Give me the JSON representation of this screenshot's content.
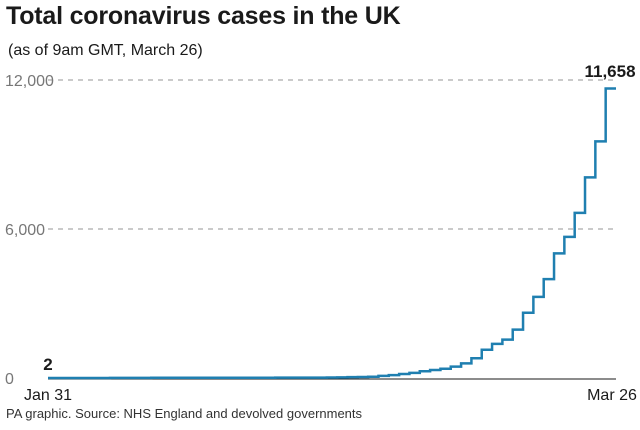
{
  "header": {
    "title": "Total coronavirus cases in the UK",
    "subtitle": "(as of 9am GMT, March 26)"
  },
  "footer": {
    "source": "PA graphic. Source: NHS England and devolved governments"
  },
  "colors": {
    "line": "#1f7fb0",
    "grid": "#aaaaaa",
    "axis": "#1a1a1a",
    "tick_label": "#777777"
  },
  "chart_data": {
    "type": "line",
    "title": "Total coronavirus cases in the UK",
    "subtitle": "(as of 9am GMT, March 26)",
    "xlabel": "",
    "ylabel": "",
    "ylim": [
      0,
      12000
    ],
    "yticks": [
      0,
      6000,
      12000
    ],
    "ytick_labels": [
      "0",
      "6,000",
      "12,000"
    ],
    "xtick_labels": [
      "Jan 31",
      "Mar 26"
    ],
    "grid": true,
    "step": true,
    "x": [
      "Jan 31",
      "Feb 1",
      "Feb 2",
      "Feb 3",
      "Feb 4",
      "Feb 5",
      "Feb 6",
      "Feb 7",
      "Feb 8",
      "Feb 9",
      "Feb 10",
      "Feb 11",
      "Feb 12",
      "Feb 13",
      "Feb 14",
      "Feb 15",
      "Feb 16",
      "Feb 17",
      "Feb 18",
      "Feb 19",
      "Feb 20",
      "Feb 21",
      "Feb 22",
      "Feb 23",
      "Feb 24",
      "Feb 25",
      "Feb 26",
      "Feb 27",
      "Feb 28",
      "Feb 29",
      "Mar 1",
      "Mar 2",
      "Mar 3",
      "Mar 4",
      "Mar 5",
      "Mar 6",
      "Mar 7",
      "Mar 8",
      "Mar 9",
      "Mar 10",
      "Mar 11",
      "Mar 12",
      "Mar 13",
      "Mar 14",
      "Mar 15",
      "Mar 16",
      "Mar 17",
      "Mar 18",
      "Mar 19",
      "Mar 20",
      "Mar 21",
      "Mar 22",
      "Mar 23",
      "Mar 24",
      "Mar 25",
      "Mar 26"
    ],
    "values": [
      2,
      2,
      2,
      2,
      2,
      2,
      3,
      3,
      3,
      4,
      8,
      8,
      9,
      9,
      9,
      9,
      9,
      9,
      9,
      9,
      9,
      9,
      13,
      13,
      13,
      13,
      15,
      20,
      23,
      36,
      40,
      51,
      85,
      114,
      160,
      206,
      271,
      321,
      373,
      456,
      590,
      797,
      1140,
      1372,
      1543,
      1950,
      2626,
      3269,
      3983,
      5018,
      5683,
      6650,
      8077,
      9529,
      11658,
      11658
    ],
    "annotations": [
      {
        "label": "2",
        "x": "Jan 31",
        "y": 2
      },
      {
        "label": "11,658",
        "x": "Mar 26",
        "y": 11658
      }
    ]
  }
}
